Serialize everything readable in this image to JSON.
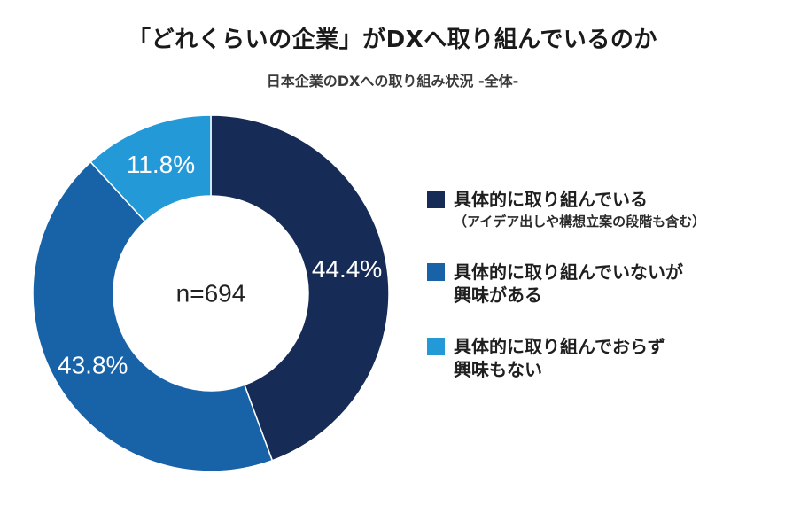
{
  "header": {
    "title": "「どれくらいの企業」がDXへ取り組んでいるのか",
    "subtitle": "日本企業のDXへの取り組み状況 -全体-"
  },
  "chart_data": {
    "type": "pie",
    "variant": "donut",
    "center_label": "n=694",
    "categories": [
      "具体的に取り組んでいる",
      "具体的に取り組んでいないが興味がある",
      "具体的に取り組んでおらず興味もない"
    ],
    "values": [
      44.4,
      43.8,
      11.8
    ],
    "value_labels": [
      "44.4%",
      "43.8%",
      "11.8%"
    ],
    "colors": [
      "#162b56",
      "#1862a8",
      "#2399d8"
    ],
    "legend_placement": "right"
  },
  "legend": {
    "items": [
      {
        "line1": "具体的に取り組んでいる",
        "line2": "",
        "note": "（アイデア出しや構想立案の段階も含む）",
        "color": "#162b56"
      },
      {
        "line1": "具体的に取り組んでいないが",
        "line2": "興味がある",
        "note": "",
        "color": "#1862a8"
      },
      {
        "line1": "具体的に取り組んでおらず",
        "line2": "興味もない",
        "note": "",
        "color": "#2399d8"
      }
    ]
  }
}
